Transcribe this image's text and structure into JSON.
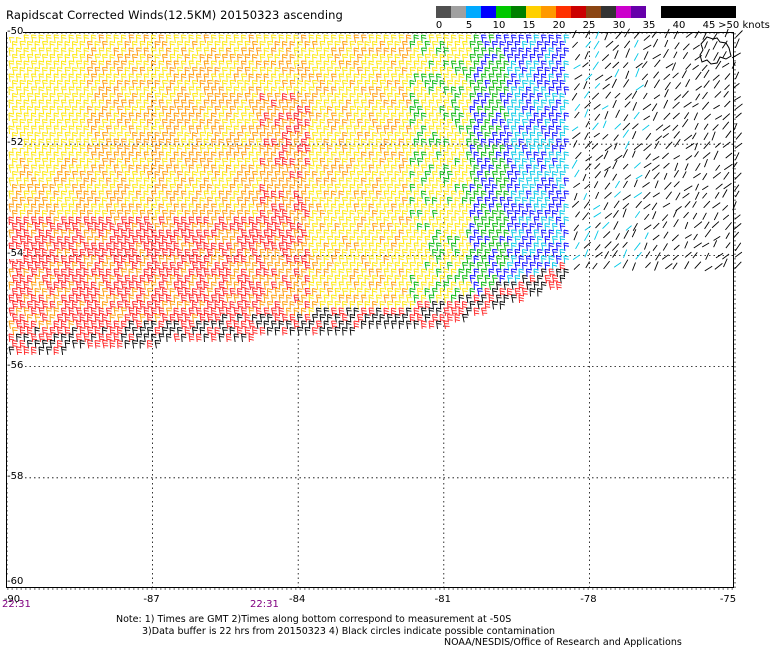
{
  "title": "Rapidscat Corrected Winds(12.5KM) 20150323 ascending",
  "legend": {
    "colors": [
      "#505050",
      "#a0a0a0",
      "#00aaff",
      "#0000ff",
      "#00c800",
      "#008000",
      "#ffd000",
      "#ff9900",
      "#ff3000",
      "#cc0000",
      "#8b4513",
      "#333333",
      "#cc00cc",
      "#6600aa",
      "#ffffff",
      "#000000",
      "#000000",
      "#000000",
      "#000000",
      "#000000"
    ],
    "labels": [
      {
        "text": "0",
        "value": 0
      },
      {
        "text": "5",
        "value": 5
      },
      {
        "text": "10",
        "value": 10
      },
      {
        "text": "15",
        "value": 15
      },
      {
        "text": "20",
        "value": 20
      },
      {
        "text": "25",
        "value": 25
      },
      {
        "text": "30",
        "value": 30
      },
      {
        "text": "35",
        "value": 35
      },
      {
        "text": "40",
        "value": 40
      },
      {
        "text": "45",
        "value": 45
      },
      {
        "text": ">50 knots",
        "value": 50
      }
    ]
  },
  "map": {
    "lat_labels": [
      "-50",
      "-52",
      "-54",
      "-56",
      "-58",
      "-60"
    ],
    "lat_values": [
      -50,
      -52,
      -54,
      -56,
      -58,
      -60
    ],
    "lon_labels": [
      "-90",
      "-87",
      "-84",
      "-81",
      "-78",
      "-75"
    ],
    "lon_values": [
      -90,
      -87,
      -84,
      -81,
      -78,
      -75
    ],
    "times": [
      "22:31",
      "22:31"
    ],
    "wind_colors": {
      "black": "#000000",
      "cyan": "#00c8e6",
      "blue": "#0000ff",
      "green": "#00b400",
      "yellow": "#ffe600",
      "orange": "#ff9900",
      "red": "#ff2020",
      "magenta": "#cc00cc"
    }
  },
  "notes": {
    "line1": "Note: 1) Times are GMT 2)Times along bottom correspond to measurement at -50S",
    "line2": "3)Data buffer is 22 hrs from 20150323 4) Black circles indicate possible contamination"
  },
  "credit": "NOAA/NESDIS/Office of Research and Applications"
}
